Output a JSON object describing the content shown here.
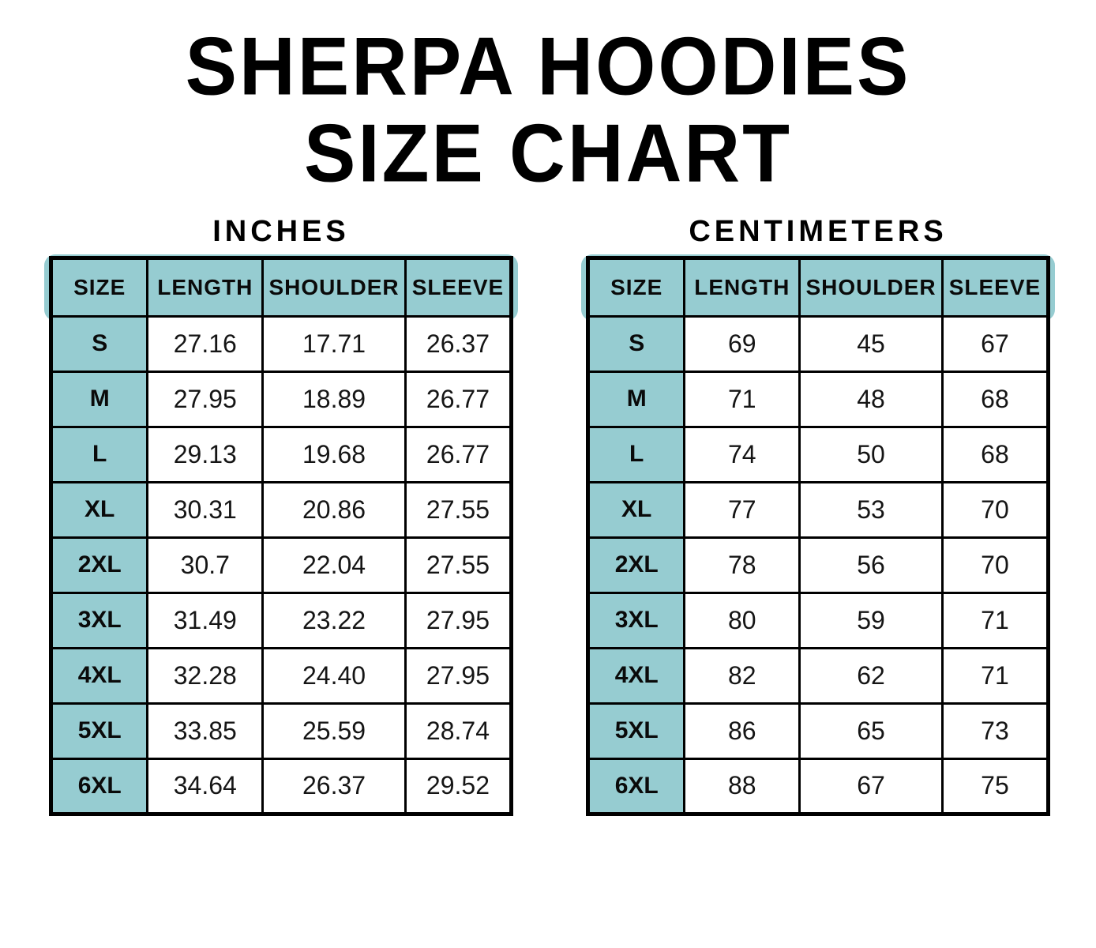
{
  "page": {
    "title_line1": "SHERPA HOODIES",
    "title_line2": "SIZE CHART"
  },
  "colors": {
    "header_fill": "#96ccd1",
    "border": "#000000",
    "text": "#0d0d0d",
    "background": "#ffffff"
  },
  "chart_data": [
    {
      "type": "table",
      "title": "INCHES",
      "columns": [
        "SIZE",
        "LENGTH",
        "SHOULDER",
        "SLEEVE"
      ],
      "rows": [
        [
          "S",
          "27.16",
          "17.71",
          "26.37"
        ],
        [
          "M",
          "27.95",
          "18.89",
          "26.77"
        ],
        [
          "L",
          "29.13",
          "19.68",
          "26.77"
        ],
        [
          "XL",
          "30.31",
          "20.86",
          "27.55"
        ],
        [
          "2XL",
          "30.7",
          "22.04",
          "27.55"
        ],
        [
          "3XL",
          "31.49",
          "23.22",
          "27.95"
        ],
        [
          "4XL",
          "32.28",
          "24.40",
          "27.95"
        ],
        [
          "5XL",
          "33.85",
          "25.59",
          "28.74"
        ],
        [
          "6XL",
          "34.64",
          "26.37",
          "29.52"
        ]
      ]
    },
    {
      "type": "table",
      "title": "CENTIMETERS",
      "columns": [
        "SIZE",
        "LENGTH",
        "SHOULDER",
        "SLEEVE"
      ],
      "rows": [
        [
          "S",
          "69",
          "45",
          "67"
        ],
        [
          "M",
          "71",
          "48",
          "68"
        ],
        [
          "L",
          "74",
          "50",
          "68"
        ],
        [
          "XL",
          "77",
          "53",
          "70"
        ],
        [
          "2XL",
          "78",
          "56",
          "70"
        ],
        [
          "3XL",
          "80",
          "59",
          "71"
        ],
        [
          "4XL",
          "82",
          "62",
          "71"
        ],
        [
          "5XL",
          "86",
          "65",
          "73"
        ],
        [
          "6XL",
          "88",
          "67",
          "75"
        ]
      ]
    }
  ]
}
